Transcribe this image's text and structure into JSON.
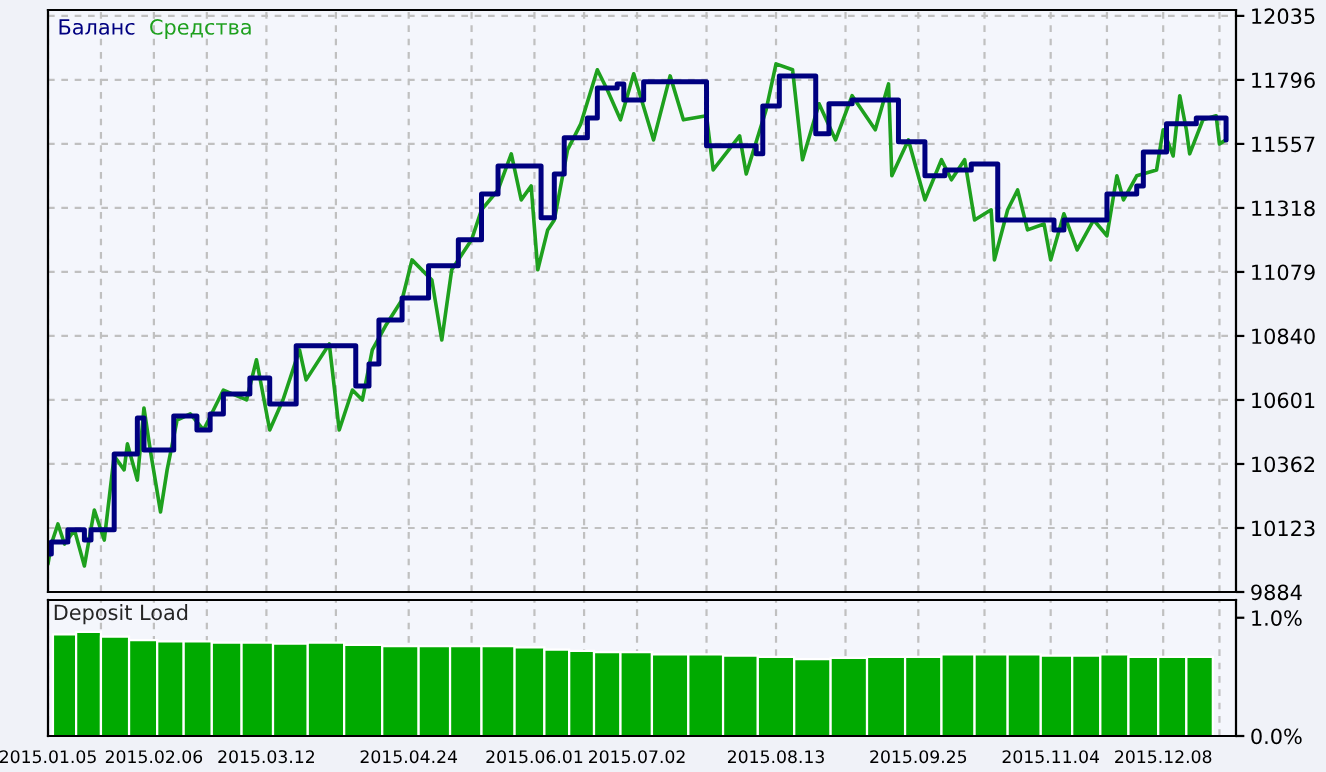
{
  "chart_data": [
    {
      "type": "line",
      "legend": "top left",
      "grid": true,
      "tick_labels": "y",
      "xlim": [
        "2015-01-05",
        "2015-12-30"
      ],
      "ylim": [
        9884,
        12057
      ],
      "xticks": [
        {
          "value": "2015-01-05",
          "label": null
        },
        {
          "value": "2015-01-21",
          "label": null
        },
        {
          "value": "2015-02-06",
          "label": null
        },
        {
          "value": "2015-02-22",
          "label": null
        },
        {
          "value": "2015-03-12",
          "label": null
        },
        {
          "value": "2015-04-02",
          "label": null
        },
        {
          "value": "2015-04-24",
          "label": null
        },
        {
          "value": "2015-05-13",
          "label": null
        },
        {
          "value": "2015-06-01",
          "label": null
        },
        {
          "value": "2015-06-16",
          "label": null
        },
        {
          "value": "2015-07-02",
          "label": null
        },
        {
          "value": "2015-07-23",
          "label": null
        },
        {
          "value": "2015-08-13",
          "label": null
        },
        {
          "value": "2015-09-03",
          "label": null
        },
        {
          "value": "2015-09-25",
          "label": null
        },
        {
          "value": "2015-10-15",
          "label": null
        },
        {
          "value": "2015-11-04",
          "label": null
        },
        {
          "value": "2015-11-21",
          "label": null
        },
        {
          "value": "2015-12-08",
          "label": null
        },
        {
          "value": "2015-12-25",
          "label": null
        }
      ],
      "yticks": [
        9884,
        10123,
        10362,
        10601,
        10840,
        11079,
        11318,
        11557,
        11796,
        12035
      ],
      "series": [
        {
          "name": "Средства",
          "type": "line",
          "color": "#1ea01e",
          "x": [
            "2015-01-05",
            "2015-01-06",
            "2015-01-08",
            "2015-01-10",
            "2015-01-13",
            "2015-01-16",
            "2015-01-19",
            "2015-01-22",
            "2015-01-25",
            "2015-01-28",
            "2015-01-29",
            "2015-02-01",
            "2015-02-03",
            "2015-02-05",
            "2015-02-08",
            "2015-02-10",
            "2015-02-13",
            "2015-02-17",
            "2015-02-21",
            "2015-02-27",
            "2015-03-06",
            "2015-03-09",
            "2015-03-13",
            "2015-03-17",
            "2015-03-22",
            "2015-03-24",
            "2015-03-31",
            "2015-04-03",
            "2015-04-07",
            "2015-04-10",
            "2015-04-13",
            "2015-04-17",
            "2015-04-22",
            "2015-04-25",
            "2015-05-01",
            "2015-05-04",
            "2015-05-07",
            "2015-05-13",
            "2015-05-16",
            "2015-05-21",
            "2015-05-25",
            "2015-05-28",
            "2015-05-31",
            "2015-06-02",
            "2015-06-05",
            "2015-06-07",
            "2015-06-11",
            "2015-06-15",
            "2015-06-20",
            "2015-06-23",
            "2015-06-27",
            "2015-07-01",
            "2015-07-07",
            "2015-07-12",
            "2015-07-16",
            "2015-07-23",
            "2015-07-25",
            "2015-08-02",
            "2015-08-04",
            "2015-08-10",
            "2015-08-13",
            "2015-08-18",
            "2015-08-21",
            "2015-08-26",
            "2015-08-31",
            "2015-09-05",
            "2015-09-12",
            "2015-09-16",
            "2015-09-17",
            "2015-09-22",
            "2015-09-27",
            "2015-10-02",
            "2015-10-05",
            "2015-10-09",
            "2015-10-12",
            "2015-10-17",
            "2015-10-18",
            "2015-10-22",
            "2015-10-25",
            "2015-10-28",
            "2015-11-02",
            "2015-11-04",
            "2015-11-08",
            "2015-11-12",
            "2015-11-17",
            "2015-11-21",
            "2015-11-24",
            "2015-11-26",
            "2015-11-30",
            "2015-12-06",
            "2015-12-08",
            "2015-12-11",
            "2015-12-13",
            "2015-12-15",
            "2015-12-16",
            "2015-12-20",
            "2015-12-24",
            "2015-12-25",
            "2015-12-27"
          ],
          "values": [
            9989,
            10063,
            10138,
            10063,
            10116,
            9981,
            10190,
            10078,
            10392,
            10340,
            10437,
            10302,
            10571,
            10407,
            10183,
            10340,
            10526,
            10549,
            10489,
            10638,
            10601,
            10751,
            10489,
            10601,
            10788,
            10676,
            10810,
            10489,
            10638,
            10601,
            10788,
            10878,
            10975,
            11124,
            11049,
            10825,
            11087,
            11199,
            11311,
            11385,
            11520,
            11348,
            11400,
            11087,
            11236,
            11273,
            11535,
            11632,
            11834,
            11759,
            11647,
            11819,
            11572,
            11811,
            11647,
            11662,
            11460,
            11587,
            11445,
            11684,
            11856,
            11834,
            11498,
            11707,
            11572,
            11737,
            11610,
            11781,
            11438,
            11572,
            11348,
            11498,
            11423,
            11498,
            11273,
            11311,
            11124,
            11311,
            11385,
            11236,
            11258,
            11124,
            11296,
            11161,
            11273,
            11214,
            11438,
            11348,
            11438,
            11460,
            11610,
            11512,
            11737,
            11610,
            11520,
            11647,
            11662,
            11557,
            11572
          ]
        },
        {
          "name": "Баланс",
          "type": "step",
          "color": "#000080",
          "x": [
            "2015-01-05",
            "2015-01-06",
            "2015-01-11",
            "2015-01-16",
            "2015-01-18",
            "2015-01-25",
            "2015-02-01",
            "2015-02-03",
            "2015-02-12",
            "2015-02-19",
            "2015-02-23",
            "2015-02-27",
            "2015-03-07",
            "2015-03-13",
            "2015-03-21",
            "2015-04-08",
            "2015-04-12",
            "2015-04-15",
            "2015-04-22",
            "2015-04-30",
            "2015-05-09",
            "2015-05-16",
            "2015-05-21",
            "2015-06-03",
            "2015-06-07",
            "2015-06-10",
            "2015-06-17",
            "2015-06-20",
            "2015-06-26",
            "2015-06-28",
            "2015-07-04",
            "2015-07-23",
            "2015-08-07",
            "2015-08-09",
            "2015-08-14",
            "2015-08-25",
            "2015-08-29",
            "2015-09-05",
            "2015-09-19",
            "2015-09-27",
            "2015-10-03",
            "2015-10-11",
            "2015-10-19",
            "2015-11-05",
            "2015-11-08",
            "2015-11-21",
            "2015-11-30",
            "2015-12-02",
            "2015-12-09",
            "2015-12-18",
            "2015-12-27"
          ],
          "values": [
            10026,
            10071,
            10116,
            10078,
            10116,
            10399,
            10534,
            10414,
            10541,
            10489,
            10549,
            10623,
            10683,
            10586,
            10803,
            10653,
            10735,
            10900,
            10982,
            11102,
            11199,
            11370,
            11475,
            11281,
            11445,
            11580,
            11654,
            11766,
            11781,
            11721,
            11789,
            11550,
            11520,
            11699,
            11811,
            11595,
            11707,
            11721,
            11565,
            11438,
            11460,
            11482,
            11273,
            11236,
            11273,
            11370,
            11400,
            11527,
            11632,
            11654,
            11572
          ]
        }
      ]
    },
    {
      "type": "bar",
      "title": "Deposit Load",
      "grid": "x",
      "color": "#00aa00",
      "xlim": [
        "2015-01-05",
        "2015-12-30"
      ],
      "ylim": [
        0,
        1.15
      ],
      "xticks": [
        {
          "value": "2015-01-05",
          "label": "2015.01.05"
        },
        {
          "value": "2015-01-21",
          "label": null
        },
        {
          "value": "2015-02-06",
          "label": "2015.02.06"
        },
        {
          "value": "2015-02-22",
          "label": null
        },
        {
          "value": "2015-03-12",
          "label": "2015.03.12"
        },
        {
          "value": "2015-04-02",
          "label": null
        },
        {
          "value": "2015-04-24",
          "label": "2015.04.24"
        },
        {
          "value": "2015-05-13",
          "label": null
        },
        {
          "value": "2015-06-01",
          "label": "2015.06.01"
        },
        {
          "value": "2015-06-16",
          "label": null
        },
        {
          "value": "2015-07-02",
          "label": "2015.07.02"
        },
        {
          "value": "2015-07-23",
          "label": null
        },
        {
          "value": "2015-08-13",
          "label": "2015.08.13"
        },
        {
          "value": "2015-09-03",
          "label": null
        },
        {
          "value": "2015-09-25",
          "label": "2015.09.25"
        },
        {
          "value": "2015-10-15",
          "label": null
        },
        {
          "value": "2015-11-04",
          "label": "2015.11.04"
        },
        {
          "value": "2015-11-21",
          "label": null
        },
        {
          "value": "2015-12-08",
          "label": "2015.12.08"
        },
        {
          "value": "2015-12-25",
          "label": null
        }
      ],
      "yticks": [
        {
          "value": 0,
          "label": "0.0%"
        },
        {
          "value": 1.0,
          "label": "1.0%"
        }
      ],
      "x": [
        "2015-01-10",
        "2015-01-17",
        "2015-01-25",
        "2015-02-03",
        "2015-02-11",
        "2015-02-19",
        "2015-02-28",
        "2015-03-09",
        "2015-03-19",
        "2015-03-30",
        "2015-04-10",
        "2015-04-22",
        "2015-05-02",
        "2015-05-11",
        "2015-05-21",
        "2015-05-31",
        "2015-06-08",
        "2015-06-15",
        "2015-06-23",
        "2015-07-01",
        "2015-07-12",
        "2015-07-23",
        "2015-08-02",
        "2015-08-13",
        "2015-08-24",
        "2015-09-04",
        "2015-09-15",
        "2015-09-27",
        "2015-10-07",
        "2015-10-17",
        "2015-10-27",
        "2015-11-06",
        "2015-11-15",
        "2015-11-23",
        "2015-12-02",
        "2015-12-11",
        "2015-12-19"
      ],
      "values": [
        0.86,
        0.88,
        0.84,
        0.81,
        0.8,
        0.8,
        0.79,
        0.79,
        0.78,
        0.79,
        0.77,
        0.76,
        0.76,
        0.76,
        0.76,
        0.75,
        0.73,
        0.72,
        0.71,
        0.71,
        0.69,
        0.69,
        0.68,
        0.67,
        0.65,
        0.66,
        0.67,
        0.67,
        0.69,
        0.69,
        0.69,
        0.68,
        0.68,
        0.69,
        0.67,
        0.67,
        0.67
      ]
    }
  ]
}
